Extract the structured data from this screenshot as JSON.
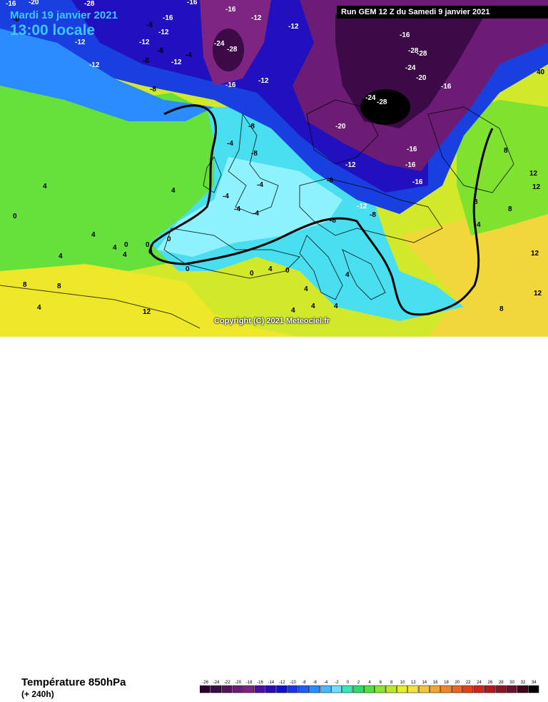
{
  "header": {
    "date": "Mardi 19 janvier 2021",
    "time": "13:00 locale",
    "run": "Run GEM 12 Z du Samedi 9 janvier 2021"
  },
  "copyright": "Copyright (C) 2021 Meteociel.fr",
  "footer": {
    "parameter": "Température 850hPa",
    "lead_time": "(+ 240h)"
  },
  "scale": {
    "values": [
      -26,
      -24,
      -22,
      -20,
      -18,
      -16,
      -14,
      -12,
      -10,
      -8,
      -6,
      -4,
      -2,
      0,
      2,
      4,
      6,
      8,
      10,
      12,
      14,
      16,
      18,
      20,
      22,
      24,
      26,
      28,
      30,
      32,
      34
    ],
    "colors": [
      "#2a0033",
      "#3d0a48",
      "#55135e",
      "#6c1c74",
      "#7e2483",
      "#4d0fa0",
      "#2a0db8",
      "#1010d0",
      "#1a32e8",
      "#1f5ef5",
      "#2a8cff",
      "#48b8ff",
      "#6ee0ff",
      "#39e6b8",
      "#2edc6c",
      "#54e13c",
      "#8be42f",
      "#bde82a",
      "#e8ec2a",
      "#f6e23e",
      "#f6c43a",
      "#f5a52e",
      "#f28728",
      "#ee6522",
      "#e3401d",
      "#d0261b",
      "#b01a20",
      "#8c1628",
      "#6c1030",
      "#3d0814",
      "#000000"
    ]
  },
  "map": {
    "isotherm_labels": [
      "-16",
      "-20",
      "-28",
      "-16",
      "-16",
      "-12",
      "-8",
      "-12",
      "-16",
      "-8",
      "-12",
      "-12",
      "-12",
      "-8",
      "-8",
      "-12",
      "-8",
      "-12",
      "-4",
      "-24",
      "-28",
      "-16",
      "-12",
      "-16",
      "-28",
      "-28",
      "-24",
      "-20",
      "-16",
      "-24",
      "-28",
      "-20",
      "-16",
      "-12",
      "-16",
      "-8",
      "-16",
      "-4",
      "-8",
      "-8",
      "-4",
      "-4",
      "-4",
      "-4",
      "-8",
      "-12",
      "-8",
      "4",
      "4",
      "0",
      "4",
      "4",
      "4",
      "4",
      "0",
      "0",
      "0",
      "0",
      "0",
      "0",
      "0",
      "4",
      "4",
      "4",
      "4",
      "4",
      "4",
      "8",
      "8",
      "12",
      "12",
      "12",
      "8",
      "8",
      "4",
      "12",
      "8",
      "4",
      "8",
      "12",
      "40"
    ]
  }
}
